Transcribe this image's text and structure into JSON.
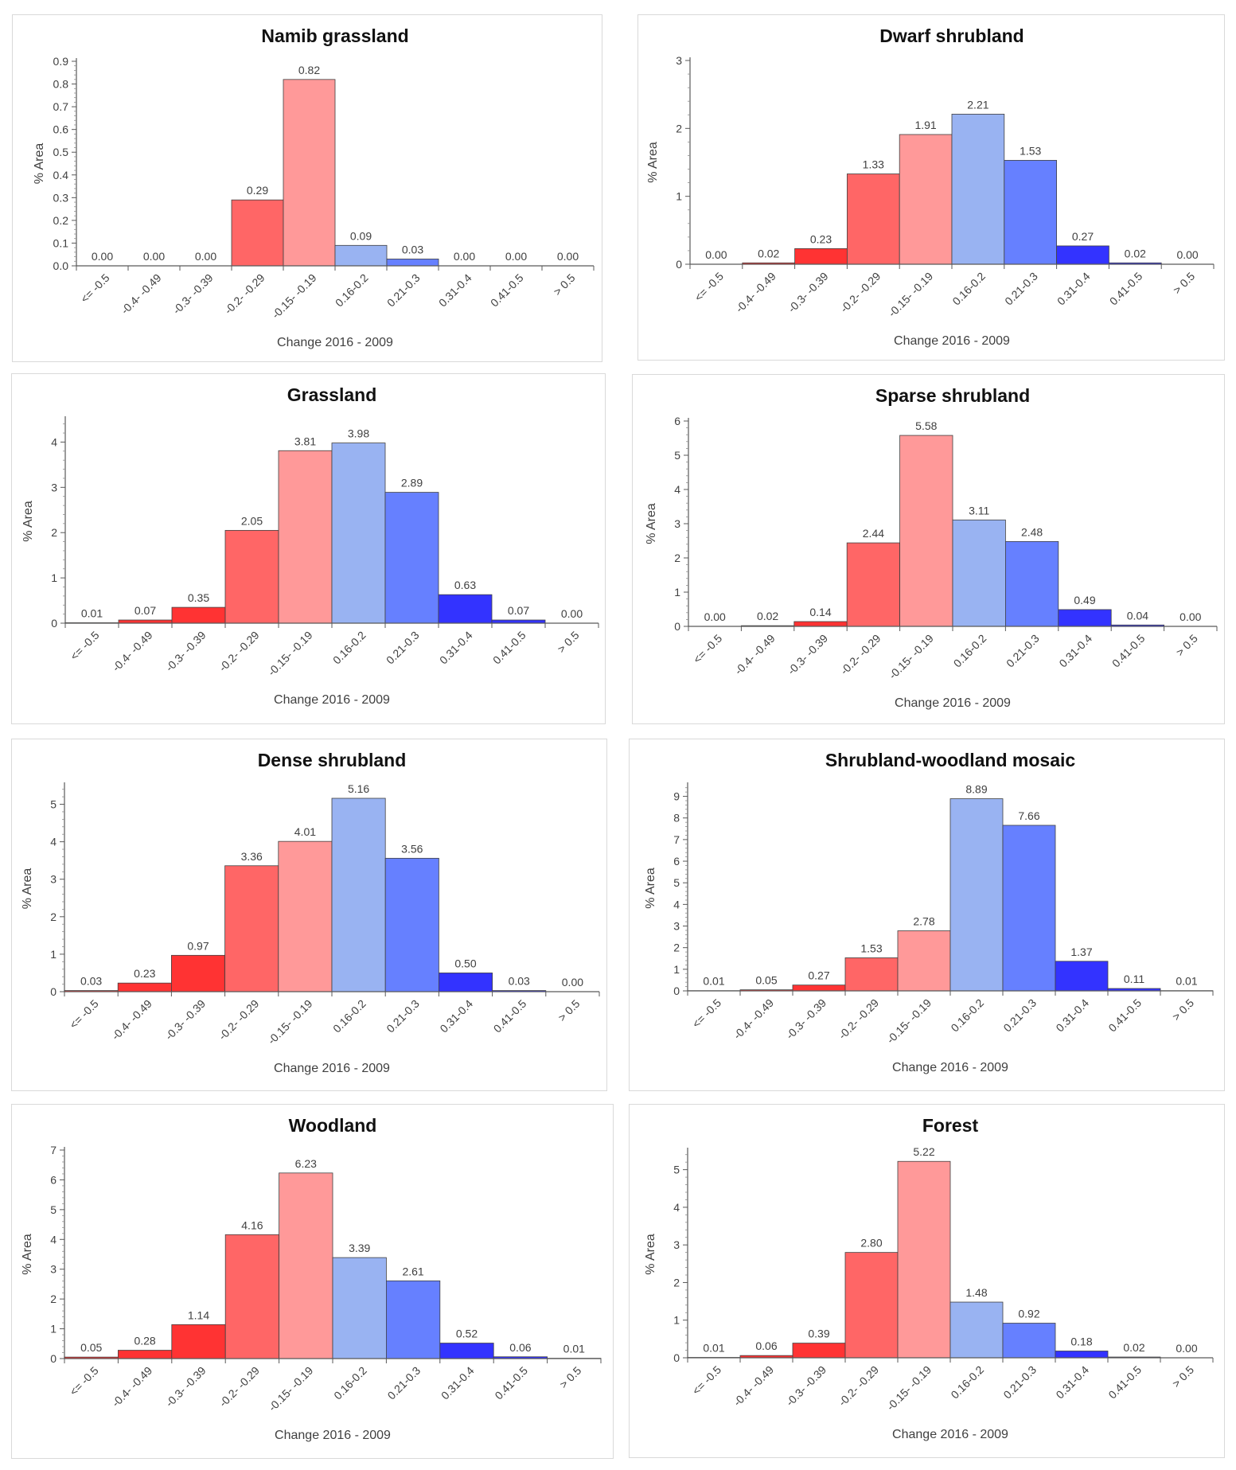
{
  "x_categories": [
    "<= -0.5",
    "-0.4- -0.49",
    "-0.3- -0.39",
    "-0.2- -0.29",
    "-0.15- -0.19",
    "0.16-0.2",
    "0.21-0.3",
    "0.31-0.4",
    "0.41-0.5",
    "> 0.5"
  ],
  "bar_colors": [
    "#ff3333",
    "#ff3333",
    "#ff3333",
    "#ff6666",
    "#ff9999",
    "#99b3f2",
    "#6680ff",
    "#3333ff",
    "#3333ff",
    "#3333ff"
  ],
  "chart_data": [
    {
      "type": "bar",
      "title": "Namib grassland",
      "xlabel": "Change 2016 - 2009",
      "ylabel": "% Area",
      "ylim": [
        0,
        0.9
      ],
      "yticks": [
        "0.0",
        "0.1",
        "0.2",
        "0.3",
        "0.4",
        "0.5",
        "0.6",
        "0.7",
        "0.8",
        "0.9"
      ],
      "values": [
        0.0,
        0.0,
        0.0,
        0.29,
        0.82,
        0.09,
        0.03,
        0.0,
        0.0,
        0.0
      ],
      "value_labels": [
        "0.00",
        "0.00",
        "0.00",
        "0.29",
        "0.82",
        "0.09",
        "0.03",
        "0.00",
        "0.00",
        "0.00"
      ]
    },
    {
      "type": "bar",
      "title": "Dwarf shrubland",
      "xlabel": "Change 2016 - 2009",
      "ylabel": "% Area",
      "ylim": [
        0,
        3
      ],
      "yticks": [
        "0",
        "1",
        "2",
        "3"
      ],
      "values": [
        0.0,
        0.02,
        0.23,
        1.33,
        1.91,
        2.21,
        1.53,
        0.27,
        0.02,
        0.0
      ],
      "value_labels": [
        "0.00",
        "0.02",
        "0.23",
        "1.33",
        "1.91",
        "2.21",
        "1.53",
        "0.27",
        "0.02",
        "0.00"
      ]
    },
    {
      "type": "bar",
      "title": "Grassland",
      "xlabel": "Change 2016 - 2009",
      "ylabel": "% Area",
      "ylim": [
        0,
        4.5
      ],
      "yticks": [
        "0",
        "1",
        "2",
        "3",
        "4"
      ],
      "values": [
        0.01,
        0.07,
        0.35,
        2.05,
        3.81,
        3.98,
        2.89,
        0.63,
        0.07,
        0.0
      ],
      "value_labels": [
        "0.01",
        "0.07",
        "0.35",
        "2.05",
        "3.81",
        "3.98",
        "2.89",
        "0.63",
        "0.07",
        "0.00"
      ]
    },
    {
      "type": "bar",
      "title": "Sparse shrubland",
      "xlabel": "Change 2016 - 2009",
      "ylabel": "% Area",
      "ylim": [
        0,
        6
      ],
      "yticks": [
        "0",
        "1",
        "2",
        "3",
        "4",
        "5",
        "6"
      ],
      "values": [
        0.0,
        0.02,
        0.14,
        2.44,
        5.58,
        3.11,
        2.48,
        0.49,
        0.04,
        0.0
      ],
      "value_labels": [
        "0.00",
        "0.02",
        "0.14",
        "2.44",
        "5.58",
        "3.11",
        "2.48",
        "0.49",
        "0.04",
        "0.00"
      ]
    },
    {
      "type": "bar",
      "title": "Dense shrubland",
      "xlabel": "Change 2016 - 2009",
      "ylabel": "% Area",
      "ylim": [
        0,
        5.5
      ],
      "yticks": [
        "0",
        "1",
        "2",
        "3",
        "4",
        "5"
      ],
      "values": [
        0.03,
        0.23,
        0.97,
        3.36,
        4.01,
        5.16,
        3.56,
        0.5,
        0.03,
        0.0
      ],
      "value_labels": [
        "0.03",
        "0.23",
        "0.97",
        "3.36",
        "4.01",
        "5.16",
        "3.56",
        "0.50",
        "0.03",
        "0.00"
      ]
    },
    {
      "type": "bar",
      "title": "Shrubland-woodland mosaic",
      "xlabel": "Change 2016 - 2009",
      "ylabel": "% Area",
      "ylim": [
        0,
        9.5
      ],
      "yticks": [
        "0",
        "1",
        "2",
        "3",
        "4",
        "5",
        "6",
        "7",
        "8",
        "9"
      ],
      "values": [
        0.01,
        0.05,
        0.27,
        1.53,
        2.78,
        8.89,
        7.66,
        1.37,
        0.11,
        0.01
      ],
      "value_labels": [
        "0.01",
        "0.05",
        "0.27",
        "1.53",
        "2.78",
        "8.89",
        "7.66",
        "1.37",
        "0.11",
        "0.01"
      ]
    },
    {
      "type": "bar",
      "title": "Woodland",
      "xlabel": "Change 2016 - 2009",
      "ylabel": "% Area",
      "ylim": [
        0,
        7
      ],
      "yticks": [
        "0",
        "1",
        "2",
        "3",
        "4",
        "5",
        "6",
        "7"
      ],
      "values": [
        0.05,
        0.28,
        1.14,
        4.16,
        6.23,
        3.39,
        2.61,
        0.52,
        0.06,
        0.01
      ],
      "value_labels": [
        "0.05",
        "0.28",
        "1.14",
        "4.16",
        "6.23",
        "3.39",
        "2.61",
        "0.52",
        "0.06",
        "0.01"
      ]
    },
    {
      "type": "bar",
      "title": "Forest",
      "xlabel": "Change 2016 - 2009",
      "ylabel": "% Area",
      "ylim": [
        0,
        5.5
      ],
      "yticks": [
        "0",
        "1",
        "2",
        "3",
        "4",
        "5"
      ],
      "values": [
        0.01,
        0.06,
        0.39,
        2.8,
        5.22,
        1.48,
        0.92,
        0.18,
        0.02,
        0.0
      ],
      "value_labels": [
        "0.01",
        "0.06",
        "0.39",
        "2.80",
        "5.22",
        "1.48",
        "0.92",
        "0.18",
        "0.02",
        "0.00"
      ]
    }
  ]
}
